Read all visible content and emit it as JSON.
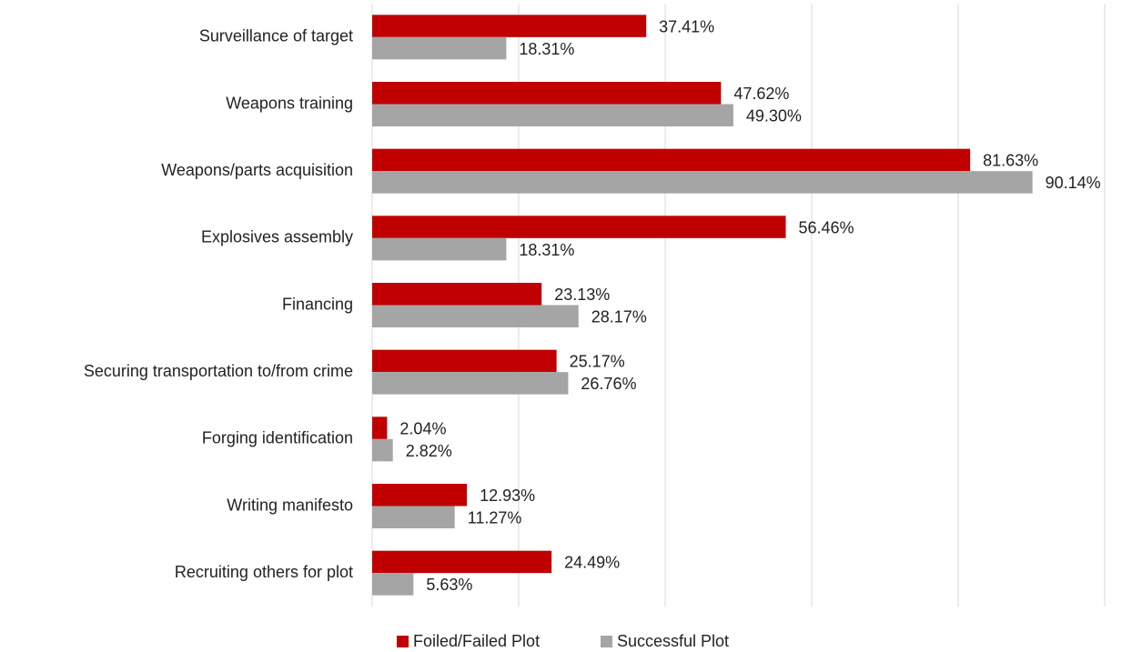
{
  "chart_data": {
    "type": "barh",
    "categories": [
      "Surveillance of target",
      "Weapons training",
      "Weapons/parts acquisition",
      "Explosives assembly",
      "Financing",
      "Securing transportation to/from crime",
      "Forging identification",
      "Writing manifesto",
      "Recruiting others for plot"
    ],
    "series": [
      {
        "name": "Foiled/Failed Plot",
        "color": "#c00000",
        "values": [
          37.41,
          47.62,
          81.63,
          56.46,
          23.13,
          25.17,
          2.04,
          12.93,
          24.49
        ],
        "value_labels": [
          "37.41%",
          "47.62%",
          "81.63%",
          "56.46%",
          "23.13%",
          "25.17%",
          "2.04%",
          "12.93%",
          "24.49%"
        ]
      },
      {
        "name": "Successful Plot",
        "color": "#a5a5a5",
        "values": [
          18.31,
          49.3,
          90.14,
          18.31,
          28.17,
          26.76,
          2.82,
          11.27,
          5.63
        ],
        "value_labels": [
          "18.31%",
          "49.30%",
          "90.14%",
          "18.31%",
          "28.17%",
          "26.76%",
          "2.82%",
          "11.27%",
          "5.63%"
        ]
      }
    ],
    "xlim": [
      0,
      100
    ],
    "xticks": [
      0,
      20,
      40,
      60,
      80,
      100
    ],
    "grid": true,
    "legend": "bottom"
  }
}
